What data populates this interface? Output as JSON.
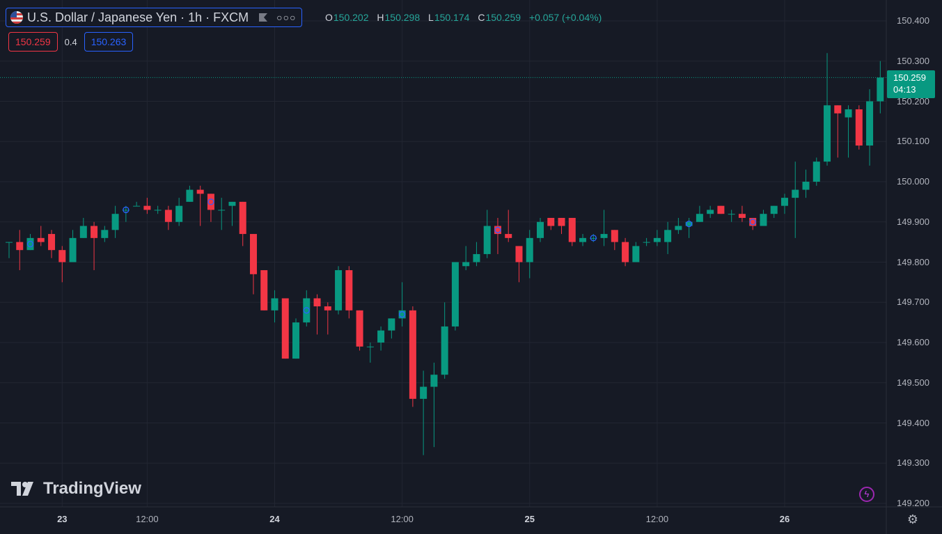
{
  "header": {
    "title": "U.S. Dollar / Japanese Yen · 1h · FXCM",
    "flag_icon": "us-flag-icon",
    "more_icon": "more-dots-icon"
  },
  "ohlc": {
    "o_label": "O",
    "o": "150.202",
    "h_label": "H",
    "h": "150.298",
    "l_label": "L",
    "l": "150.174",
    "c_label": "C",
    "c": "150.259",
    "change": "+0.057 (+0.04%)"
  },
  "quote": {
    "sell": "150.259",
    "spread": "0.4",
    "buy": "150.263"
  },
  "last_price": {
    "price": "150.259",
    "countdown": "04:13"
  },
  "colors": {
    "up": "#089981",
    "down": "#f23645",
    "background": "#161a25",
    "grid": "#222632",
    "accent": "#2962ff"
  },
  "branding": {
    "logo_text": "TradingView"
  },
  "icons": {
    "bolt": "lightning-icon",
    "settings": "gear-icon"
  },
  "chart_data": {
    "type": "candlestick",
    "title": "U.S. Dollar / Japanese Yen · 1h · FXCM",
    "ylim": [
      149.2,
      150.44
    ],
    "y_ticks": [
      "150.400",
      "150.300",
      "150.200",
      "150.100",
      "150.000",
      "149.900",
      "149.800",
      "149.700",
      "149.600",
      "149.500",
      "149.400",
      "149.300",
      "149.200"
    ],
    "x_ticks": [
      {
        "label": "23",
        "day": true,
        "bar": 5
      },
      {
        "label": "12:00",
        "day": false,
        "bar": 13
      },
      {
        "label": "24",
        "day": true,
        "bar": 25
      },
      {
        "label": "12:00",
        "day": false,
        "bar": 37
      },
      {
        "label": "25",
        "day": true,
        "bar": 49
      },
      {
        "label": "12:00",
        "day": false,
        "bar": 61
      },
      {
        "label": "26",
        "day": true,
        "bar": 73
      }
    ],
    "last_value": 150.259,
    "grid": true,
    "candles": [
      [
        149.85,
        149.85,
        149.81,
        149.85
      ],
      [
        149.85,
        149.88,
        149.78,
        149.83
      ],
      [
        149.83,
        149.87,
        149.83,
        149.86
      ],
      [
        149.86,
        149.89,
        149.84,
        149.85
      ],
      [
        149.87,
        149.88,
        149.81,
        149.83
      ],
      [
        149.83,
        149.84,
        149.75,
        149.8
      ],
      [
        149.8,
        149.88,
        149.8,
        149.86
      ],
      [
        149.86,
        149.91,
        149.86,
        149.89
      ],
      [
        149.89,
        149.9,
        149.78,
        149.86
      ],
      [
        149.86,
        149.89,
        149.85,
        149.88
      ],
      [
        149.88,
        149.94,
        149.86,
        149.92
      ],
      [
        149.93,
        149.94,
        149.9,
        149.93
      ],
      [
        149.94,
        149.95,
        149.94,
        149.94
      ],
      [
        149.94,
        149.96,
        149.92,
        149.93
      ],
      [
        149.93,
        149.94,
        149.92,
        149.93
      ],
      [
        149.93,
        149.94,
        149.88,
        149.9
      ],
      [
        149.9,
        149.96,
        149.89,
        149.94
      ],
      [
        149.95,
        149.99,
        149.95,
        149.98
      ],
      [
        149.98,
        149.99,
        149.89,
        149.97
      ],
      [
        149.97,
        149.97,
        149.9,
        149.93
      ],
      [
        149.93,
        149.96,
        149.88,
        149.93
      ],
      [
        149.94,
        149.95,
        149.89,
        149.95
      ],
      [
        149.95,
        149.95,
        149.84,
        149.87
      ],
      [
        149.87,
        149.87,
        149.72,
        149.77
      ],
      [
        149.78,
        149.78,
        149.68,
        149.68
      ],
      [
        149.68,
        149.73,
        149.65,
        149.71
      ],
      [
        149.71,
        149.71,
        149.56,
        149.56
      ],
      [
        149.56,
        149.66,
        149.56,
        149.65
      ],
      [
        149.65,
        149.73,
        149.64,
        149.71
      ],
      [
        149.71,
        149.72,
        149.62,
        149.69
      ],
      [
        149.69,
        149.7,
        149.62,
        149.68
      ],
      [
        149.68,
        149.79,
        149.67,
        149.78
      ],
      [
        149.78,
        149.79,
        149.66,
        149.68
      ],
      [
        149.68,
        149.68,
        149.58,
        149.59
      ],
      [
        149.59,
        149.6,
        149.55,
        149.59
      ],
      [
        149.6,
        149.64,
        149.58,
        149.63
      ],
      [
        149.63,
        149.66,
        149.61,
        149.66
      ],
      [
        149.66,
        149.75,
        149.64,
        149.68
      ],
      [
        149.68,
        149.69,
        149.44,
        149.46
      ],
      [
        149.46,
        149.53,
        149.32,
        149.49
      ],
      [
        149.49,
        149.55,
        149.34,
        149.52
      ],
      [
        149.52,
        149.7,
        149.51,
        149.64
      ],
      [
        149.64,
        149.8,
        149.63,
        149.8
      ],
      [
        149.79,
        149.84,
        149.78,
        149.8
      ],
      [
        149.8,
        149.85,
        149.79,
        149.82
      ],
      [
        149.82,
        149.93,
        149.81,
        149.89
      ],
      [
        149.89,
        149.91,
        149.82,
        149.87
      ],
      [
        149.87,
        149.93,
        149.85,
        149.86
      ],
      [
        149.84,
        149.84,
        149.75,
        149.8
      ],
      [
        149.8,
        149.88,
        149.76,
        149.86
      ],
      [
        149.86,
        149.91,
        149.85,
        149.9
      ],
      [
        149.91,
        149.91,
        149.88,
        149.89
      ],
      [
        149.91,
        149.91,
        149.87,
        149.89
      ],
      [
        149.91,
        149.91,
        149.84,
        149.85
      ],
      [
        149.85,
        149.87,
        149.84,
        149.86
      ],
      [
        149.86,
        149.87,
        149.85,
        149.86
      ],
      [
        149.86,
        149.93,
        149.84,
        149.87
      ],
      [
        149.88,
        149.88,
        149.83,
        149.85
      ],
      [
        149.85,
        149.86,
        149.79,
        149.8
      ],
      [
        149.8,
        149.85,
        149.8,
        149.84
      ],
      [
        149.85,
        149.86,
        149.84,
        149.85
      ],
      [
        149.85,
        149.88,
        149.84,
        149.86
      ],
      [
        149.85,
        149.9,
        149.82,
        149.88
      ],
      [
        149.88,
        149.91,
        149.87,
        149.89
      ],
      [
        149.89,
        149.91,
        149.86,
        149.9
      ],
      [
        149.9,
        149.94,
        149.9,
        149.92
      ],
      [
        149.92,
        149.94,
        149.91,
        149.93
      ],
      [
        149.94,
        149.94,
        149.92,
        149.92
      ],
      [
        149.92,
        149.93,
        149.9,
        149.92
      ],
      [
        149.92,
        149.94,
        149.9,
        149.91
      ],
      [
        149.91,
        149.91,
        149.88,
        149.89
      ],
      [
        149.89,
        149.93,
        149.89,
        149.92
      ],
      [
        149.92,
        149.94,
        149.91,
        149.94
      ],
      [
        149.94,
        149.97,
        149.92,
        149.96
      ],
      [
        149.96,
        150.05,
        149.86,
        149.98
      ],
      [
        149.98,
        150.03,
        149.96,
        150.0
      ],
      [
        150.0,
        150.06,
        149.99,
        150.05
      ],
      [
        150.05,
        150.32,
        150.04,
        150.19
      ],
      [
        150.19,
        150.19,
        150.06,
        150.17
      ],
      [
        150.16,
        150.19,
        150.06,
        150.18
      ],
      [
        150.18,
        150.19,
        150.08,
        150.09
      ],
      [
        150.09,
        150.23,
        150.04,
        150.2
      ],
      [
        150.2,
        150.3,
        150.17,
        150.259
      ]
    ],
    "markers": [
      2,
      11,
      19,
      28,
      37,
      46,
      55,
      64,
      70
    ]
  }
}
